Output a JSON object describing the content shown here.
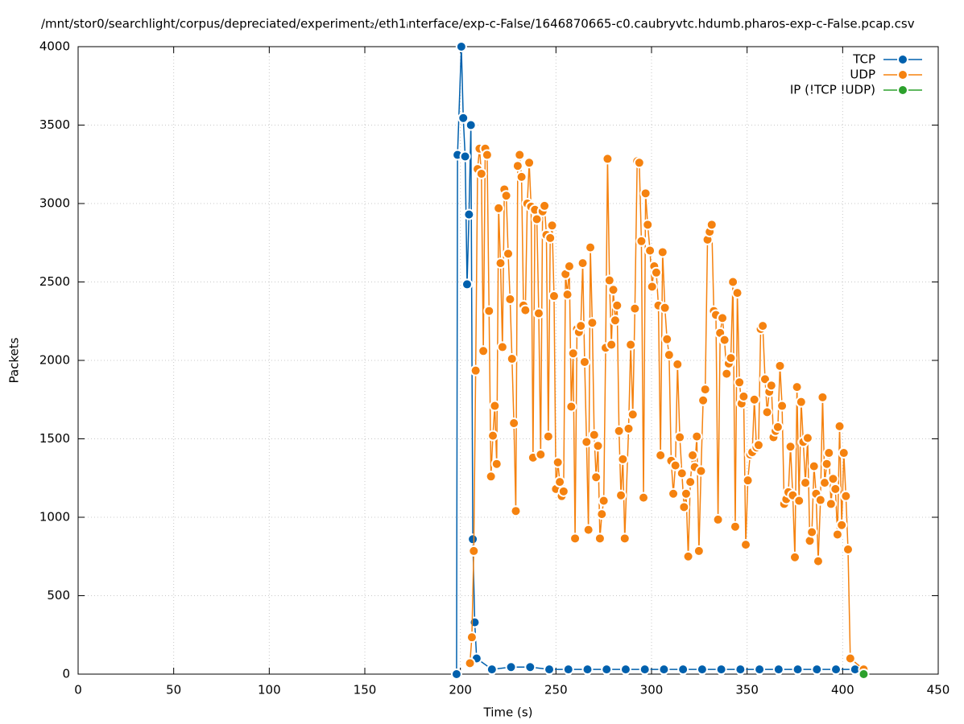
{
  "chart_data": {
    "type": "line",
    "title": "/mnt/stor0/searchlight/corpus/depreciated/experiment₂/eth1ᵢnterface/exp-c-False/1646870665-c0.caubryvtc.hdumb.pharos-exp-c-False.pcap.csv",
    "x_label": "Time (s)",
    "y_label": "Packets",
    "xlim": [
      0,
      450
    ],
    "xticks": [
      0,
      50,
      100,
      150,
      200,
      250,
      300,
      350,
      400,
      450
    ],
    "ylim": [
      0,
      4000
    ],
    "yticks": [
      0,
      500,
      1000,
      1500,
      2000,
      2500,
      3000,
      3500,
      4000
    ],
    "grid": true,
    "legend": "top-right",
    "series": [
      {
        "name": "TCP",
        "color": "#0060ad",
        "x": [
          198,
          198.5,
          200.5,
          201.5,
          202.5,
          203.5,
          204.5,
          205.5,
          206.5,
          207.5,
          208.5,
          216.5,
          226.5,
          236.5,
          246.5,
          256.5,
          266.5,
          276.5,
          286.5,
          296.5,
          306.5,
          316.5,
          326.5,
          336.5,
          346.5,
          356.5,
          366.5,
          376.5,
          386.5,
          396.5,
          406.5
        ],
        "values": [
          0,
          3310,
          4000,
          3545,
          3300,
          2485,
          2930,
          3500,
          860,
          330,
          100,
          30,
          45,
          45,
          30,
          30,
          30,
          30,
          30,
          30,
          30,
          30,
          30,
          30,
          30,
          30,
          30,
          30,
          30,
          30,
          30
        ]
      },
      {
        "name": "UDP",
        "color": "#f5820f",
        "x": [
          205,
          206,
          207,
          208,
          209,
          210,
          211,
          212,
          213,
          214,
          215,
          216,
          217,
          218,
          219,
          220,
          221,
          222,
          223,
          224,
          225,
          226,
          227,
          228,
          229,
          230,
          231,
          232,
          233,
          234,
          235,
          236,
          237,
          238,
          239,
          240,
          241,
          242,
          243,
          244,
          245,
          246,
          247,
          248,
          249,
          250,
          251,
          252,
          253,
          254,
          255,
          256,
          257,
          258,
          259,
          260,
          261,
          262,
          263,
          264,
          265,
          266,
          267,
          268,
          269,
          270,
          271,
          272,
          273,
          274,
          275,
          276,
          277,
          278,
          279,
          280,
          281,
          282,
          283,
          284,
          285,
          286,
          288.0,
          289.1,
          290.2,
          291.3,
          292.5,
          293.6,
          294.7,
          295.8,
          296.9,
          298.0,
          299.2,
          300.3,
          301.4,
          302.5,
          303.6,
          304.7,
          305.8,
          307.0,
          308.1,
          309.2,
          310.3,
          311.4,
          312.5,
          313.6,
          314.8,
          315.9,
          317.0,
          318.1,
          319.2,
          320.3,
          321.5,
          322.6,
          323.7,
          324.8,
          325.9,
          327.0,
          328.1,
          329.3,
          330.4,
          331.5,
          332.6,
          333.7,
          334.8,
          335.9,
          337.1,
          338.2,
          339.3,
          340.4,
          341.5,
          342.6,
          343.8,
          344.9,
          346.0,
          347.1,
          348.2,
          349.3,
          350.4,
          351.6,
          352.7,
          353.8,
          354.9,
          356.0,
          357.1,
          358.2,
          359.4,
          360.5,
          361.6,
          362.7,
          363.8,
          364.9,
          366.1,
          367.2,
          368.3,
          369.4,
          370.5,
          371.6,
          372.7,
          373.9,
          375.0,
          376.1,
          377.2,
          378.3,
          379.4,
          380.5,
          381.7,
          382.8,
          383.9,
          385.0,
          386.1,
          387.2,
          388.4,
          389.5,
          390.6,
          391.7,
          392.8,
          393.9,
          395.0,
          396.2,
          397.3,
          398.4,
          399.5,
          400.6,
          401.7,
          402.8,
          404.0,
          411
        ],
        "values": [
          70,
          235,
          785,
          1935,
          3220,
          3350,
          3190,
          2060,
          3350,
          3310,
          2315,
          1260,
          1520,
          1710,
          1340,
          2970,
          2620,
          2085,
          3090,
          3050,
          2680,
          2390,
          2010,
          1600,
          1040,
          3240,
          3310,
          3170,
          2350,
          2320,
          3000,
          3260,
          2980,
          1380,
          2960,
          2900,
          2300,
          1400,
          2950,
          2985,
          2800,
          1515,
          2780,
          2860,
          2410,
          1180,
          1350,
          1225,
          1135,
          1165,
          2550,
          2420,
          2600,
          1705,
          2045,
          865,
          2200,
          2180,
          2220,
          2620,
          1990,
          1480,
          920,
          2720,
          2240,
          1525,
          1255,
          1455,
          865,
          1020,
          1105,
          2080,
          3285,
          2510,
          2100,
          2450,
          2255,
          2350,
          1550,
          1140,
          1370,
          865,
          1565,
          2100,
          1655,
          2330,
          3270,
          3260,
          2760,
          1125,
          3065,
          2865,
          2700,
          2470,
          2600,
          2560,
          2350,
          1395,
          2690,
          2335,
          2135,
          2035,
          1360,
          1150,
          1330,
          1975,
          1510,
          1280,
          1065,
          1150,
          750,
          1225,
          1395,
          1320,
          1515,
          785,
          1295,
          1745,
          1815,
          2770,
          2820,
          2865,
          2315,
          2290,
          985,
          2175,
          2270,
          2130,
          1915,
          1980,
          2015,
          2500,
          940,
          2430,
          1860,
          1725,
          1770,
          825,
          1235,
          1400,
          1415,
          1750,
          1445,
          1460,
          2200,
          2220,
          1880,
          1670,
          1800,
          1840,
          1510,
          1550,
          1575,
          1965,
          1710,
          1085,
          1115,
          1160,
          1450,
          1140,
          745,
          1830,
          1105,
          1735,
          1480,
          1220,
          1505,
          850,
          905,
          1325,
          1150,
          720,
          1110,
          1765,
          1220,
          1340,
          1410,
          1085,
          1245,
          1180,
          890,
          1580,
          950,
          1410,
          1135,
          795,
          100,
          30
        ]
      },
      {
        "name": "IP (!TCP  !UDP)",
        "color": "#2ca02c",
        "x": [
          411
        ],
        "values": [
          0
        ]
      }
    ]
  }
}
